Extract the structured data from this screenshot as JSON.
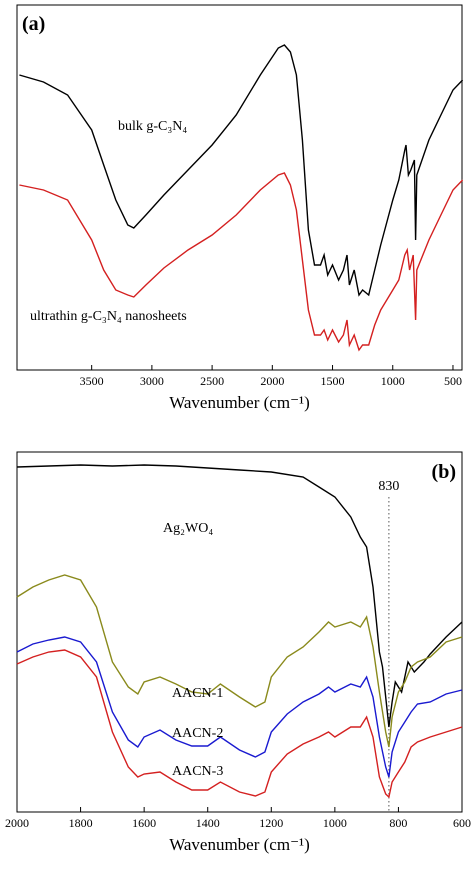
{
  "chart_data": [
    {
      "type": "line",
      "panel_label": "(a)",
      "xlabel": "Wavenumber (cm⁻¹)",
      "xlim": [
        4120,
        425
      ],
      "xticks": [
        3500,
        3000,
        2500,
        2000,
        1500,
        1000,
        500
      ],
      "ylim": [
        0,
        365
      ],
      "series": [
        {
          "name": "bulk g-C₃N₄",
          "color": "#000000",
          "x": [
            4100,
            3900,
            3700,
            3500,
            3400,
            3300,
            3200,
            3150,
            3050,
            2900,
            2700,
            2500,
            2300,
            2100,
            1950,
            1900,
            1850,
            1800,
            1750,
            1700,
            1650,
            1600,
            1570,
            1540,
            1500,
            1450,
            1410,
            1380,
            1360,
            1320,
            1280,
            1250,
            1200,
            1150,
            1100,
            1000,
            950,
            900,
            890,
            870,
            850,
            820,
            810,
            800,
            700,
            600,
            500,
            420
          ],
          "values": [
            295,
            288,
            275,
            240,
            205,
            170,
            145,
            142,
            155,
            175,
            200,
            225,
            255,
            295,
            322,
            325,
            318,
            295,
            230,
            140,
            105,
            105,
            115,
            95,
            105,
            90,
            100,
            115,
            85,
            100,
            75,
            80,
            75,
            100,
            125,
            170,
            190,
            220,
            225,
            195,
            200,
            210,
            130,
            195,
            230,
            255,
            280,
            290
          ]
        },
        {
          "name": "ultrathin g-C₃N₄ nanosheets",
          "color": "#d42020",
          "x": [
            4100,
            3900,
            3700,
            3500,
            3400,
            3300,
            3200,
            3150,
            3050,
            2900,
            2700,
            2500,
            2300,
            2100,
            1950,
            1900,
            1850,
            1800,
            1750,
            1700,
            1650,
            1600,
            1570,
            1540,
            1500,
            1450,
            1410,
            1380,
            1360,
            1320,
            1280,
            1250,
            1200,
            1150,
            1100,
            1000,
            950,
            900,
            880,
            860,
            830,
            810,
            800,
            700,
            600,
            500,
            420
          ],
          "values": [
            185,
            180,
            170,
            130,
            100,
            80,
            75,
            73,
            85,
            102,
            120,
            135,
            155,
            180,
            195,
            197,
            185,
            160,
            110,
            60,
            35,
            35,
            40,
            30,
            40,
            28,
            35,
            50,
            25,
            35,
            20,
            25,
            25,
            45,
            60,
            80,
            90,
            115,
            120,
            100,
            115,
            50,
            100,
            130,
            155,
            180,
            190
          ]
        }
      ]
    },
    {
      "type": "line",
      "panel_label": "(b)",
      "xlabel": "Wavenumber (cm⁻¹)",
      "xlim": [
        2000,
        600
      ],
      "xticks": [
        2000,
        1800,
        1600,
        1400,
        1200,
        1000,
        800,
        600
      ],
      "ylim": [
        0,
        360
      ],
      "annotations": [
        {
          "text": "830",
          "x": 830
        }
      ],
      "series": [
        {
          "name": "Ag₂WO₄",
          "color": "#000000",
          "x": [
            2000,
            1900,
            1800,
            1700,
            1600,
            1500,
            1400,
            1300,
            1200,
            1100,
            1050,
            1000,
            950,
            920,
            900,
            880,
            860,
            850,
            840,
            830,
            820,
            810,
            790,
            770,
            750,
            720,
            700,
            650,
            600
          ],
          "values": [
            345,
            346,
            347,
            346,
            347,
            346,
            344,
            342,
            340,
            335,
            325,
            315,
            295,
            275,
            265,
            225,
            160,
            145,
            115,
            85,
            110,
            130,
            120,
            150,
            140,
            150,
            158,
            175,
            190
          ]
        },
        {
          "name": "AACN-1",
          "color": "#8a8a1c",
          "x": [
            2000,
            1950,
            1900,
            1850,
            1800,
            1750,
            1700,
            1650,
            1620,
            1600,
            1550,
            1500,
            1450,
            1400,
            1360,
            1300,
            1250,
            1220,
            1200,
            1150,
            1100,
            1050,
            1020,
            1000,
            950,
            920,
            900,
            880,
            860,
            840,
            830,
            820,
            800,
            780,
            760,
            740,
            700,
            650,
            600
          ],
          "values": [
            215,
            225,
            232,
            237,
            232,
            205,
            150,
            125,
            118,
            130,
            135,
            128,
            120,
            118,
            128,
            115,
            105,
            110,
            135,
            155,
            165,
            180,
            190,
            185,
            190,
            185,
            195,
            165,
            120,
            80,
            65,
            95,
            120,
            130,
            145,
            150,
            155,
            170,
            175
          ]
        },
        {
          "name": "AACN-2",
          "color": "#1a1ad0",
          "x": [
            2000,
            1950,
            1900,
            1850,
            1800,
            1750,
            1700,
            1650,
            1620,
            1600,
            1550,
            1500,
            1450,
            1400,
            1360,
            1300,
            1250,
            1220,
            1200,
            1150,
            1100,
            1050,
            1020,
            1000,
            950,
            920,
            900,
            880,
            860,
            840,
            830,
            820,
            800,
            780,
            760,
            740,
            700,
            650,
            600
          ],
          "values": [
            160,
            168,
            172,
            175,
            170,
            150,
            100,
            72,
            65,
            75,
            82,
            72,
            66,
            66,
            75,
            62,
            55,
            60,
            80,
            98,
            110,
            118,
            125,
            120,
            128,
            125,
            135,
            115,
            75,
            45,
            35,
            60,
            80,
            90,
            100,
            108,
            110,
            118,
            122
          ]
        },
        {
          "name": "AACN-3",
          "color": "#d42020",
          "x": [
            2000,
            1950,
            1900,
            1850,
            1800,
            1750,
            1700,
            1650,
            1620,
            1600,
            1550,
            1500,
            1450,
            1400,
            1360,
            1300,
            1250,
            1220,
            1200,
            1150,
            1100,
            1050,
            1020,
            1000,
            950,
            920,
            900,
            880,
            860,
            840,
            830,
            820,
            800,
            780,
            760,
            740,
            700,
            650,
            600
          ],
          "values": [
            148,
            155,
            160,
            162,
            155,
            135,
            80,
            45,
            35,
            38,
            40,
            30,
            22,
            22,
            30,
            20,
            16,
            20,
            40,
            58,
            68,
            75,
            80,
            75,
            85,
            85,
            95,
            75,
            35,
            18,
            15,
            30,
            40,
            50,
            65,
            70,
            75,
            80,
            85
          ]
        }
      ]
    }
  ]
}
